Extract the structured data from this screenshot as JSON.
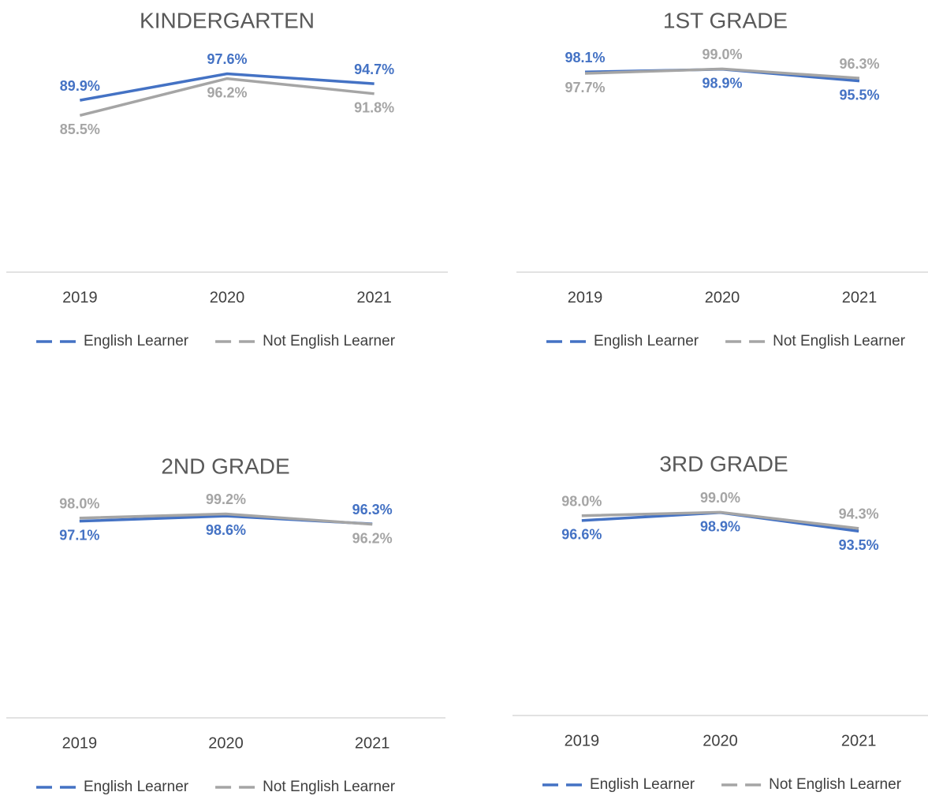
{
  "chart_data": [
    {
      "type": "line",
      "title": "KINDERGARTEN",
      "categories": [
        "2019",
        "2020",
        "2021"
      ],
      "series": [
        {
          "name": "English Learner",
          "color": "#4472c4",
          "values": [
            89.9,
            97.6,
            94.7
          ],
          "value_labels": [
            "89.9%",
            "97.6%",
            "94.7%"
          ]
        },
        {
          "name": "Not English Learner",
          "color": "#a5a5a5",
          "values": [
            85.5,
            96.2,
            91.8
          ],
          "value_labels": [
            "85.5%",
            "96.2%",
            "91.8%"
          ]
        }
      ],
      "ylim": [
        40,
        100
      ],
      "legend": "bottom"
    },
    {
      "type": "line",
      "title": "1ST GRADE",
      "categories": [
        "2019",
        "2020",
        "2021"
      ],
      "series": [
        {
          "name": "English Learner",
          "color": "#4472c4",
          "values": [
            98.1,
            98.9,
            95.5
          ],
          "value_labels": [
            "98.1%",
            "98.9%",
            "95.5%"
          ]
        },
        {
          "name": "Not English Learner",
          "color": "#a5a5a5",
          "values": [
            97.7,
            99.0,
            96.3
          ],
          "value_labels": [
            "97.7%",
            "99.0%",
            "96.3%"
          ]
        }
      ],
      "ylim": [
        40,
        100
      ],
      "legend": "bottom"
    },
    {
      "type": "line",
      "title": "2ND GRADE",
      "categories": [
        "2019",
        "2020",
        "2021"
      ],
      "series": [
        {
          "name": "English Learner",
          "color": "#4472c4",
          "values": [
            97.1,
            98.6,
            96.3
          ],
          "value_labels": [
            "97.1%",
            "98.6%",
            "96.3%"
          ]
        },
        {
          "name": "Not English Learner",
          "color": "#a5a5a5",
          "values": [
            98.0,
            99.2,
            96.2
          ],
          "value_labels": [
            "98.0%",
            "99.2%",
            "96.2%"
          ]
        }
      ],
      "ylim": [
        40,
        100
      ],
      "legend": "bottom"
    },
    {
      "type": "line",
      "title": "3RD GRADE",
      "categories": [
        "2019",
        "2020",
        "2021"
      ],
      "series": [
        {
          "name": "English Learner",
          "color": "#4472c4",
          "values": [
            96.6,
            98.9,
            93.5
          ],
          "value_labels": [
            "96.6%",
            "98.9%",
            "93.5%"
          ]
        },
        {
          "name": "Not English Learner",
          "color": "#a5a5a5",
          "values": [
            98.0,
            99.0,
            94.3
          ],
          "value_labels": [
            "98.0%",
            "99.0%",
            "94.3%"
          ]
        }
      ],
      "ylim": [
        40,
        100
      ],
      "legend": "bottom"
    }
  ]
}
